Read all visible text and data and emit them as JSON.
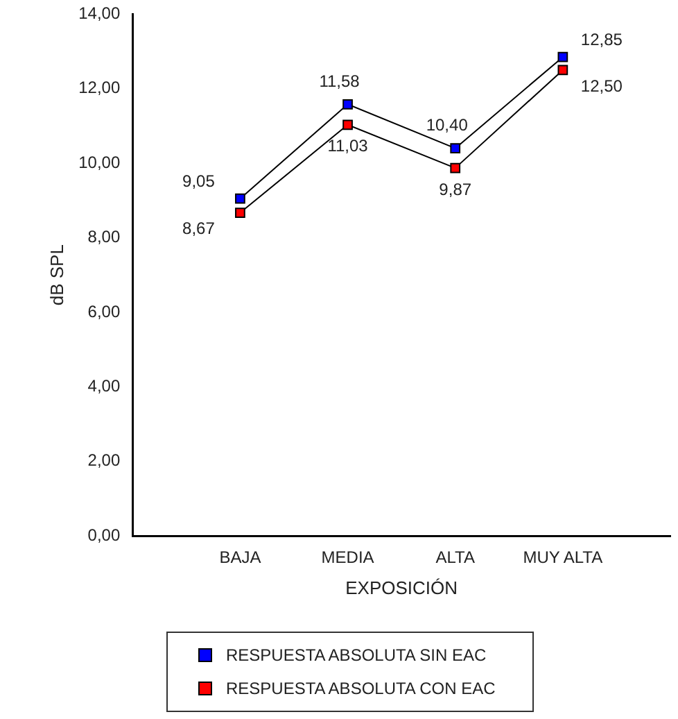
{
  "chart_data": {
    "type": "line",
    "xlabel": "EXPOSICIÓN",
    "ylabel": "dB SPL",
    "categories": [
      "BAJA",
      "MEDIA",
      "ALTA",
      "MUY ALTA"
    ],
    "series": [
      {
        "name": "RESPUESTA ABSOLUTA SIN EAC",
        "color": "#0000ff",
        "values": [
          9.05,
          11.58,
          10.4,
          12.85
        ],
        "value_labels": [
          "9,05",
          "11,58",
          "10,40",
          "12,85"
        ]
      },
      {
        "name": "RESPUESTA ABSOLUTA CON EAC",
        "color": "#ff0000",
        "values": [
          8.67,
          11.03,
          9.87,
          12.5
        ],
        "value_labels": [
          "8,67",
          "11,03",
          "9,87",
          "12,50"
        ]
      }
    ],
    "ylim": [
      0,
      14
    ],
    "yticks": [
      {
        "value": 0,
        "label": "0,00"
      },
      {
        "value": 2,
        "label": "2,00"
      },
      {
        "value": 4,
        "label": "4,00"
      },
      {
        "value": 6,
        "label": "6,00"
      },
      {
        "value": 8,
        "label": "8,00"
      },
      {
        "value": 10,
        "label": "10,00"
      },
      {
        "value": 12,
        "label": "12,00"
      },
      {
        "value": 14,
        "label": "14,00"
      }
    ],
    "grid": false,
    "legend": "bottom",
    "marker": "square",
    "line_style": "solid"
  }
}
